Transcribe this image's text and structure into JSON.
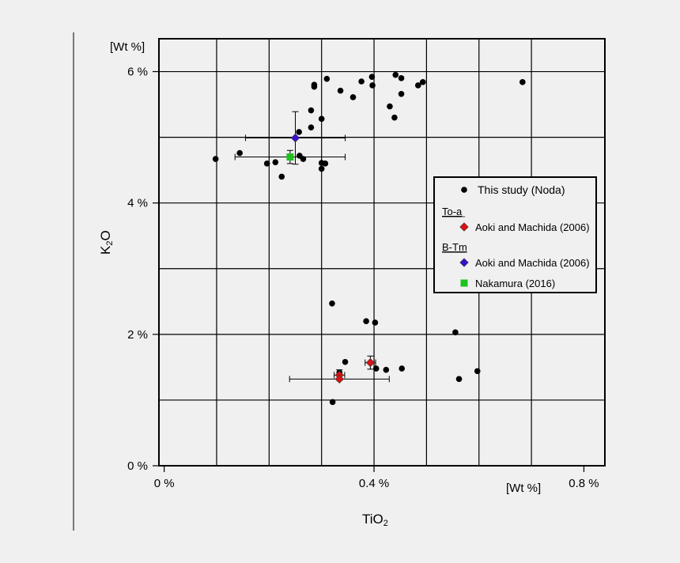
{
  "chart_data": {
    "type": "scatter",
    "xlabel_main": "TiO",
    "xlabel_sub": "2",
    "ylabel_main": "K",
    "ylabel_sub": "2",
    "ylabel_tail": "O",
    "x_unit": "[Wt %]",
    "y_unit": "[Wt %]",
    "xlim": [
      -0.01,
      0.84
    ],
    "ylim": [
      0,
      6.5
    ],
    "x_ticks": [
      {
        "value": 0.0,
        "label": "0 %"
      },
      {
        "value": 0.4,
        "label": "0.4 %"
      },
      {
        "value": 0.8,
        "label": "0.8 %"
      }
    ],
    "y_ticks": [
      {
        "value": 0,
        "label": "0 %"
      },
      {
        "value": 2,
        "label": "2 %"
      },
      {
        "value": 4,
        "label": "4 %"
      },
      {
        "value": 6,
        "label": "6 %"
      }
    ],
    "x_gridlines": [
      0.1,
      0.2,
      0.3,
      0.4,
      0.5,
      0.6,
      0.7
    ],
    "y_gridlines": [
      1,
      2,
      3,
      4,
      5,
      6
    ],
    "grid": true,
    "legend_position": "right",
    "series": [
      {
        "name": "This study (Noda)",
        "marker": "circle",
        "color": "#000000",
        "points": [
          [
            0.441,
            5.95
          ],
          [
            0.452,
            5.9
          ],
          [
            0.396,
            5.92
          ],
          [
            0.31,
            5.89
          ],
          [
            0.376,
            5.85
          ],
          [
            0.397,
            5.79
          ],
          [
            0.286,
            5.8
          ],
          [
            0.286,
            5.77
          ],
          [
            0.484,
            5.79
          ],
          [
            0.493,
            5.84
          ],
          [
            0.683,
            5.84
          ],
          [
            0.336,
            5.71
          ],
          [
            0.452,
            5.66
          ],
          [
            0.36,
            5.61
          ],
          [
            0.43,
            5.47
          ],
          [
            0.28,
            5.41
          ],
          [
            0.439,
            5.3
          ],
          [
            0.3,
            5.28
          ],
          [
            0.28,
            5.15
          ],
          [
            0.257,
            5.08
          ],
          [
            0.144,
            4.76
          ],
          [
            0.258,
            4.72
          ],
          [
            0.265,
            4.67
          ],
          [
            0.098,
            4.67
          ],
          [
            0.3,
            4.61
          ],
          [
            0.307,
            4.6
          ],
          [
            0.196,
            4.6
          ],
          [
            0.212,
            4.62
          ],
          [
            0.3,
            4.52
          ],
          [
            0.224,
            4.4
          ],
          [
            0.32,
            2.47
          ],
          [
            0.385,
            2.2
          ],
          [
            0.402,
            2.18
          ],
          [
            0.555,
            2.03
          ],
          [
            0.562,
            1.32
          ],
          [
            0.597,
            1.44
          ],
          [
            0.453,
            1.48
          ],
          [
            0.423,
            1.46
          ],
          [
            0.404,
            1.48
          ],
          [
            0.345,
            1.58
          ],
          [
            0.334,
            1.42
          ],
          [
            0.321,
            0.97
          ]
        ]
      },
      {
        "name": "Aoki and Machida (2006)",
        "group": "To-a",
        "marker": "diamond",
        "color": "#dd1111",
        "points": [
          [
            0.393,
            1.57,
            0.01,
            0.1
          ],
          [
            0.334,
            1.38,
            0.01,
            0.08
          ],
          [
            0.334,
            1.32,
            0.095,
            0
          ]
        ]
      },
      {
        "name": "Aoki and Machida (2006)",
        "group": "B-Tm",
        "marker": "diamond",
        "color": "#3a10d0",
        "points": [
          [
            0.25,
            4.99,
            0.095,
            0.4
          ]
        ]
      },
      {
        "name": "Nakamura (2016)",
        "group": "B-Tm",
        "marker": "square",
        "color": "#1ec21e",
        "points": [
          [
            0.24,
            4.7,
            0.105,
            0.1
          ]
        ]
      }
    ],
    "legend": {
      "entries": [
        {
          "type": "item",
          "label": "This study (Noda)",
          "marker": "circle",
          "color": "#000000"
        },
        {
          "type": "header",
          "label": "To-a"
        },
        {
          "type": "item",
          "label": "Aoki and Machida (2006)",
          "marker": "diamond",
          "color": "#dd1111"
        },
        {
          "type": "header",
          "label": "B-Tm"
        },
        {
          "type": "item",
          "label": "Aoki and Machida (2006)",
          "marker": "diamond",
          "color": "#3a10d0"
        },
        {
          "type": "item",
          "label": "Nakamura (2016)",
          "marker": "square",
          "color": "#1ec21e"
        }
      ]
    }
  }
}
